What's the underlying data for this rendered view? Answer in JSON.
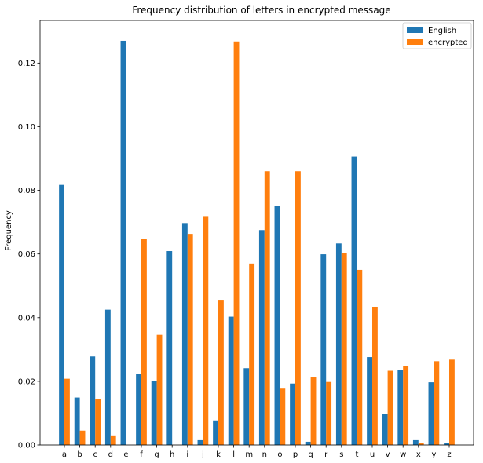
{
  "chart_data": {
    "type": "bar",
    "title": "Frequency distribution of letters in encrypted message",
    "xlabel": "",
    "ylabel": "Frequency",
    "ylim": [
      0,
      0.1334
    ],
    "yticks": [
      "0.00",
      "0.02",
      "0.04",
      "0.06",
      "0.08",
      "0.10",
      "0.12"
    ],
    "categories": [
      "a",
      "b",
      "c",
      "d",
      "e",
      "f",
      "g",
      "h",
      "i",
      "j",
      "k",
      "l",
      "m",
      "n",
      "o",
      "p",
      "q",
      "r",
      "s",
      "t",
      "u",
      "v",
      "w",
      "x",
      "y",
      "z"
    ],
    "series": [
      {
        "name": "English",
        "color": "#1f77b4",
        "values": [
          0.0817,
          0.0149,
          0.0278,
          0.0425,
          0.127,
          0.0223,
          0.0202,
          0.0609,
          0.0697,
          0.0015,
          0.0077,
          0.0403,
          0.0241,
          0.0675,
          0.0751,
          0.0193,
          0.001,
          0.0599,
          0.0633,
          0.0906,
          0.0276,
          0.0098,
          0.0236,
          0.0015,
          0.0197,
          0.0007
        ]
      },
      {
        "name": "encrypted",
        "color": "#ff7f0e",
        "values": [
          0.0208,
          0.0045,
          0.0143,
          0.003,
          0.0,
          0.0648,
          0.0346,
          0.0,
          0.0663,
          0.0719,
          0.0456,
          0.1268,
          0.057,
          0.086,
          0.0177,
          0.086,
          0.0212,
          0.0198,
          0.0603,
          0.055,
          0.0434,
          0.0233,
          0.0248,
          0.0007,
          0.0263,
          0.0268
        ]
      }
    ],
    "legend_position": "top-right",
    "grid": false
  }
}
